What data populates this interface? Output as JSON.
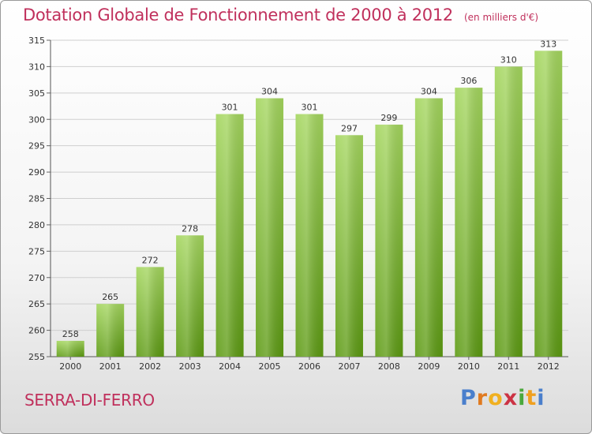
{
  "header": {
    "title": "Dotation Globale de Fonctionnement de 2000 à 2012",
    "subtitle": "(en milliers d'€)"
  },
  "footer": {
    "commune": "SERRA-DI-FERRO",
    "logo_letters": [
      "P",
      "r",
      "o",
      "x",
      "i",
      "t",
      "i"
    ]
  },
  "colors": {
    "title": "#c0305c",
    "bar_top": "#a4d65e",
    "bar_bottom": "#5c9a12",
    "grid": "#cfcfcf",
    "logo": [
      "#4a7fcc",
      "#e07a20",
      "#f0b020",
      "#cc3344",
      "#4aa83c",
      "#f0a020",
      "#4a7fcc"
    ]
  },
  "chart_data": {
    "type": "bar",
    "title": "Dotation Globale de Fonctionnement de 2000 à 2012",
    "ylabel": "en milliers d'€",
    "categories": [
      "2000",
      "2001",
      "2002",
      "2003",
      "2004",
      "2005",
      "2006",
      "2007",
      "2008",
      "2009",
      "2010",
      "2011",
      "2012"
    ],
    "values": [
      258,
      265,
      272,
      278,
      301,
      304,
      301,
      297,
      299,
      304,
      306,
      310,
      313
    ],
    "ylim": [
      255,
      315
    ],
    "yticks": [
      255,
      260,
      265,
      270,
      275,
      280,
      285,
      290,
      295,
      300,
      305,
      310,
      315
    ],
    "grid": true
  }
}
